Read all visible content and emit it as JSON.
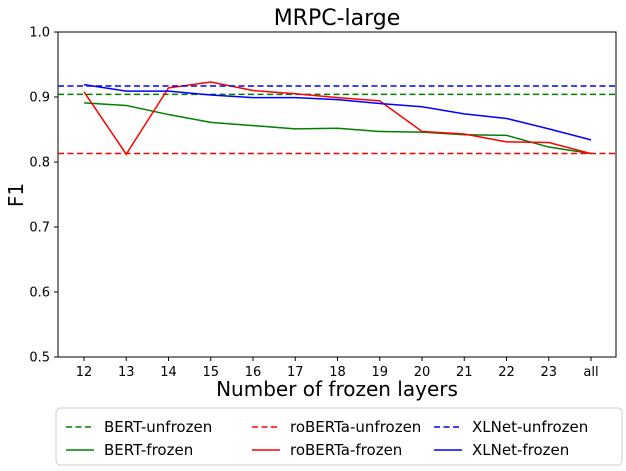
{
  "chart_data": {
    "type": "line",
    "title": "MRPC-large",
    "xlabel": "Number of frozen layers",
    "ylabel": "F1",
    "categories": [
      "12",
      "13",
      "14",
      "15",
      "16",
      "17",
      "18",
      "19",
      "20",
      "21",
      "22",
      "23",
      "all"
    ],
    "ylim": [
      0.5,
      1.0
    ],
    "yticks": [
      "0.5",
      "0.6",
      "0.7",
      "0.8",
      "0.9",
      "1.0"
    ],
    "grid": false,
    "legend_position": "bottom",
    "series": [
      {
        "name": "BERT-unfrozen",
        "style": "dashed",
        "color": "#008000",
        "values": [
          0.904,
          0.904,
          0.904,
          0.904,
          0.904,
          0.904,
          0.904,
          0.904,
          0.904,
          0.904,
          0.904,
          0.904,
          0.904
        ]
      },
      {
        "name": "BERT-frozen",
        "style": "solid",
        "color": "#008000",
        "values": [
          0.891,
          0.887,
          0.873,
          0.861,
          0.856,
          0.851,
          0.852,
          0.847,
          0.846,
          0.842,
          0.841,
          0.823,
          0.813
        ]
      },
      {
        "name": "roBERTa-unfrozen",
        "style": "dashed",
        "color": "#ff0000",
        "values": [
          0.813,
          0.813,
          0.813,
          0.813,
          0.813,
          0.813,
          0.813,
          0.813,
          0.813,
          0.813,
          0.813,
          0.813,
          0.813
        ]
      },
      {
        "name": "roBERTa-frozen",
        "style": "solid",
        "color": "#ff0000",
        "values": [
          0.908,
          0.812,
          0.914,
          0.923,
          0.91,
          0.905,
          0.899,
          0.894,
          0.847,
          0.843,
          0.831,
          0.83,
          0.813
        ]
      },
      {
        "name": "XLNet-unfrozen",
        "style": "dashed",
        "color": "#0000ff",
        "values": [
          0.917,
          0.917,
          0.917,
          0.917,
          0.917,
          0.917,
          0.917,
          0.917,
          0.917,
          0.917,
          0.917,
          0.917,
          0.917
        ]
      },
      {
        "name": "XLNet-frozen",
        "style": "solid",
        "color": "#0000ff",
        "values": [
          0.919,
          0.909,
          0.909,
          0.903,
          0.899,
          0.899,
          0.896,
          0.89,
          0.885,
          0.874,
          0.867,
          0.851,
          0.834
        ]
      }
    ]
  }
}
